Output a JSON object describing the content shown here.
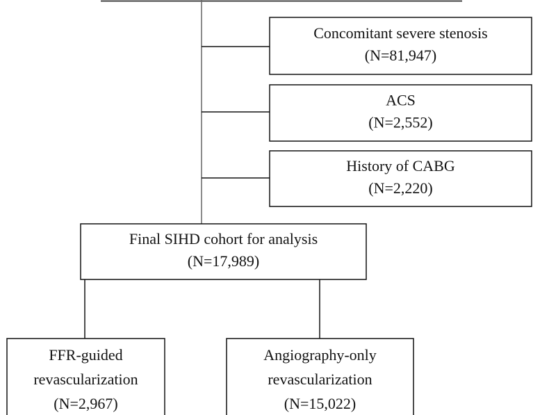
{
  "exclusions": [
    {
      "lines": [
        "Concomitant severe stenosis",
        "(N=81,947)"
      ]
    },
    {
      "lines": [
        "ACS",
        "(N=2,552)"
      ]
    },
    {
      "lines": [
        "History of CABG",
        "(N=2,220)"
      ]
    }
  ],
  "final": {
    "lines": [
      "Final SIHD cohort for analysis",
      "(N=17,989)"
    ]
  },
  "groups": [
    {
      "lines": [
        "FFR-guided",
        "revascularization",
        "(N=2,967)"
      ]
    },
    {
      "lines": [
        "Angiography-only",
        "revascularization",
        "(N=15,022)"
      ]
    }
  ]
}
